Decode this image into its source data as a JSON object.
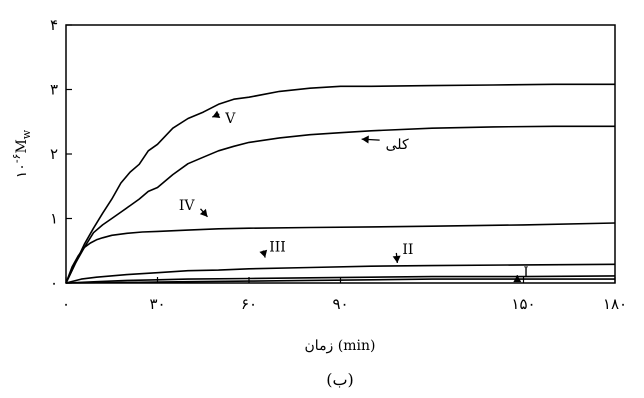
{
  "chart_data": {
    "type": "line",
    "xlabel": "زمان (min)",
    "ylabel_prefix": "۱۰",
    "ylabel_exp": "-۶",
    "ylabel_var": "M",
    "ylabel_sub": "w",
    "caption": "(ب)",
    "xlim": [
      0,
      180
    ],
    "ylim": [
      0,
      4
    ],
    "x_ticks": [
      0,
      30,
      60,
      90,
      150,
      180
    ],
    "x_tick_labels": [
      "۰",
      "۳۰",
      "۶۰",
      "۹۰",
      "۱۵۰",
      "۱۸۰"
    ],
    "y_ticks": [
      0,
      1,
      2,
      3,
      4
    ],
    "y_tick_labels": [
      "۰",
      "۱",
      "۲",
      "۳",
      "۴"
    ],
    "grid": false,
    "series": [
      {
        "name": "V",
        "x": [
          0,
          3,
          6,
          9,
          12,
          15,
          18,
          21,
          24,
          27,
          30,
          35,
          40,
          45,
          50,
          55,
          60,
          70,
          80,
          90,
          100,
          120,
          140,
          160,
          180
        ],
        "values": [
          0,
          0.3,
          0.6,
          0.85,
          1.08,
          1.3,
          1.55,
          1.72,
          1.84,
          2.05,
          2.15,
          2.4,
          2.55,
          2.65,
          2.77,
          2.85,
          2.88,
          2.97,
          3.02,
          3.05,
          3.05,
          3.06,
          3.07,
          3.08,
          3.08
        ]
      },
      {
        "name": "کلی",
        "x": [
          0,
          3,
          6,
          9,
          12,
          15,
          18,
          21,
          24,
          27,
          30,
          35,
          40,
          45,
          50,
          55,
          60,
          70,
          80,
          90,
          100,
          120,
          140,
          160,
          180
        ],
        "values": [
          0,
          0.3,
          0.55,
          0.78,
          0.9,
          1.0,
          1.1,
          1.2,
          1.3,
          1.42,
          1.48,
          1.68,
          1.85,
          1.95,
          2.05,
          2.12,
          2.18,
          2.25,
          2.3,
          2.33,
          2.36,
          2.4,
          2.42,
          2.43,
          2.43
        ]
      },
      {
        "name": "IV",
        "x": [
          0,
          2,
          4,
          6,
          8,
          10,
          12,
          15,
          20,
          25,
          30,
          40,
          50,
          60,
          80,
          100,
          120,
          150,
          180
        ],
        "values": [
          0,
          0.25,
          0.42,
          0.55,
          0.62,
          0.67,
          0.7,
          0.74,
          0.77,
          0.79,
          0.8,
          0.82,
          0.84,
          0.85,
          0.86,
          0.87,
          0.88,
          0.9,
          0.93
        ]
      },
      {
        "name": "III",
        "x": [
          0,
          5,
          10,
          20,
          30,
          40,
          50,
          60,
          80,
          100,
          120,
          150,
          180
        ],
        "values": [
          0,
          0.06,
          0.09,
          0.13,
          0.16,
          0.19,
          0.2,
          0.22,
          0.24,
          0.26,
          0.27,
          0.28,
          0.29
        ]
      },
      {
        "name": "II",
        "x": [
          0,
          10,
          20,
          30,
          40,
          60,
          80,
          100,
          120,
          150,
          180
        ],
        "values": [
          0,
          0.02,
          0.04,
          0.05,
          0.06,
          0.07,
          0.08,
          0.09,
          0.1,
          0.1,
          0.11
        ]
      },
      {
        "name": "I",
        "x": [
          0,
          20,
          40,
          60,
          80,
          100,
          120,
          140,
          160,
          180
        ],
        "values": [
          0,
          0.01,
          0.02,
          0.03,
          0.04,
          0.05,
          0.06,
          0.06,
          0.06,
          0.06
        ]
      }
    ],
    "annotations": [
      {
        "text": "V",
        "series": "V"
      },
      {
        "text": "کلی",
        "series": "کلی"
      },
      {
        "text": "IV",
        "series": "IV"
      },
      {
        "text": "III",
        "series": "III"
      },
      {
        "text": "II",
        "series": "II"
      },
      {
        "text": "I",
        "series": "I"
      }
    ]
  }
}
